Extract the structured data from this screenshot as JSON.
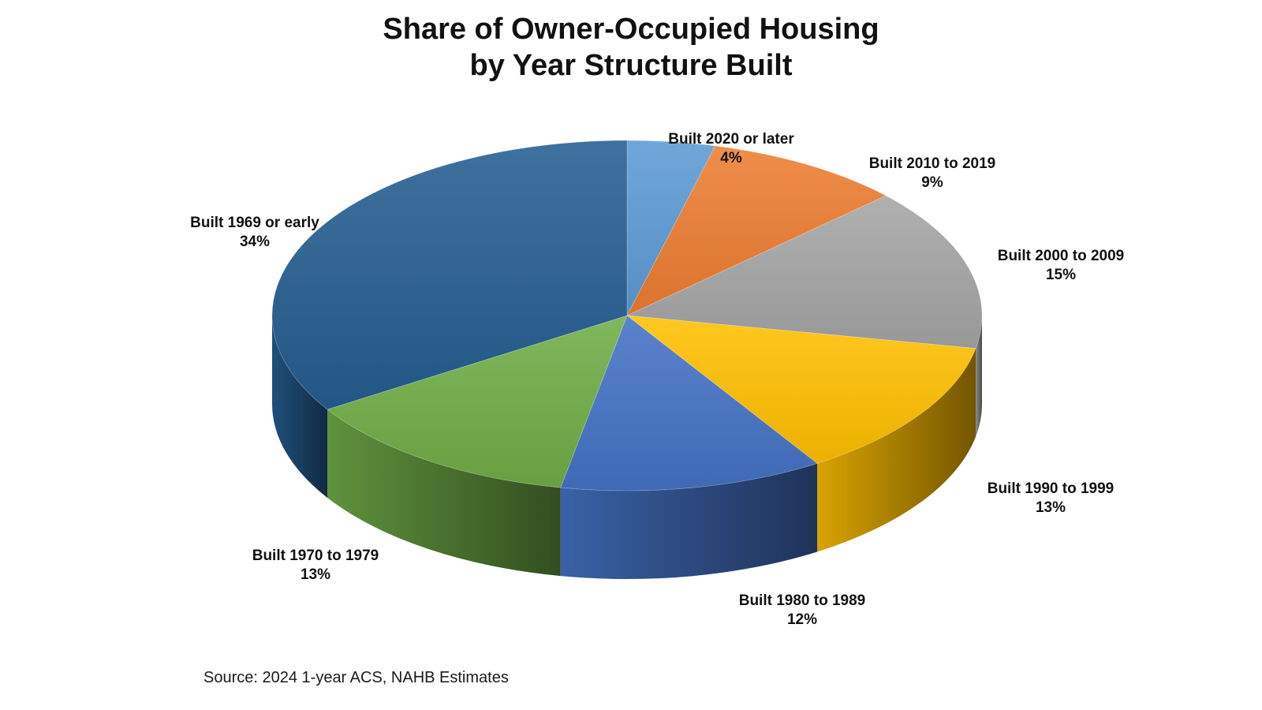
{
  "chart_data": {
    "type": "pie",
    "title": [
      "Share of Owner-Occupied Housing",
      "by Year Structure Built"
    ],
    "slices": [
      {
        "label": "Built 2020 or later",
        "value_label": "4%",
        "value": 4,
        "color": "#5B9BD5"
      },
      {
        "label": "Built 2010 to 2019",
        "value_label": "9%",
        "value": 9,
        "color": "#ED7D31"
      },
      {
        "label": "Built 2000 to 2009",
        "value_label": "15%",
        "value": 15,
        "color": "#A5A5A5"
      },
      {
        "label": "Built 1990 to 1999",
        "value_label": "13%",
        "value": 13,
        "color": "#FFC000"
      },
      {
        "label": "Built 1980 to 1989",
        "value_label": "12%",
        "value": 12,
        "color": "#4472C4"
      },
      {
        "label": "Built 1970 to 1979",
        "value_label": "13%",
        "value": 13,
        "color": "#70AD47"
      },
      {
        "label": "Built 1969 or early",
        "value_label": "34%",
        "value": 34,
        "color": "#255E91"
      }
    ],
    "start": "12 o'clock",
    "direction": "clockwise",
    "style": "3d"
  },
  "source": "Source: 2024 1-year ACS, NAHB Estimates"
}
